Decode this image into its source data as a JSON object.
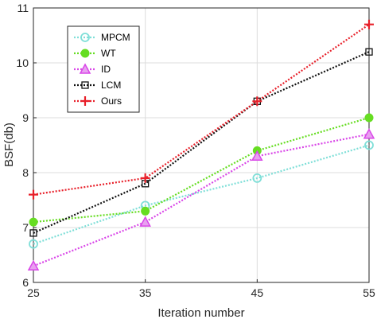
{
  "chart_data": {
    "type": "line",
    "xlabel": "Iteration number",
    "ylabel": "BSF(db)",
    "x": [
      25,
      35,
      45,
      55
    ],
    "xticks": [
      "25",
      "35",
      "45",
      "55"
    ],
    "yticks": [
      "6",
      "7",
      "8",
      "9",
      "10",
      "11"
    ],
    "xlim": [
      25,
      55
    ],
    "ylim": [
      6,
      11
    ],
    "grid": true,
    "legend_position": "top-left",
    "series": [
      {
        "name": "MPCM",
        "values": [
          6.7,
          7.4,
          7.9,
          8.5
        ],
        "color": "#7fdfd8",
        "marker": "circle-open",
        "dash": "dotted"
      },
      {
        "name": "WT",
        "values": [
          7.1,
          7.3,
          8.4,
          9.0
        ],
        "color": "#66dd22",
        "marker": "circle-filled",
        "dash": "dotted"
      },
      {
        "name": "ID",
        "values": [
          6.3,
          7.1,
          8.3,
          8.7
        ],
        "color": "#d946e8",
        "marker": "triangle",
        "dash": "dotted"
      },
      {
        "name": "LCM",
        "values": [
          6.9,
          7.8,
          9.3,
          10.2
        ],
        "color": "#111111",
        "marker": "square-open",
        "dash": "dotted"
      },
      {
        "name": "Ours",
        "values": [
          7.6,
          7.9,
          9.3,
          10.7
        ],
        "color": "#e8202a",
        "marker": "plus",
        "dash": "dotted"
      }
    ]
  }
}
